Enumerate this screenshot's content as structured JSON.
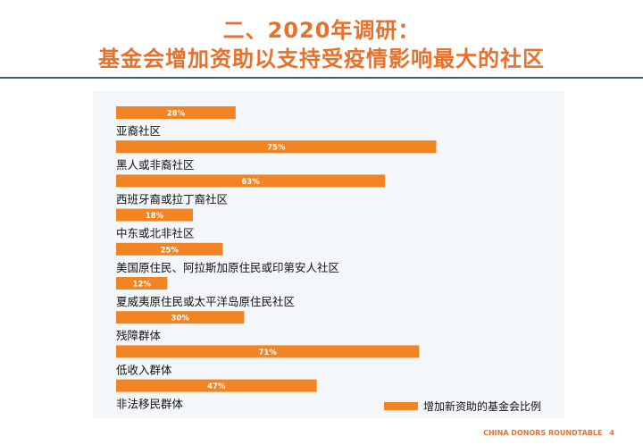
{
  "page": {
    "title_line1": "二、2020年调研：",
    "title_line2": "基金会增加资助以支持受疫情影响最大的社区",
    "footer_text": "CHINA DONORS ROUNDTABLE",
    "page_number": "4"
  },
  "colors": {
    "accent": "#e8702a",
    "bar": "#f28424",
    "rule": "#3b5d80",
    "panel": "#f4f7f9"
  },
  "chart_data": {
    "type": "bar",
    "orientation": "horizontal",
    "categories": [
      "亚裔社区",
      "黑人或非裔社区",
      "西班牙裔或拉丁裔社区",
      "中东或北非社区",
      "美国原住民、阿拉斯加原住民或印第安人社区",
      "夏威夷原住民或太平洋岛原住民社区",
      "残障群体",
      "低收入群体",
      "非法移民群体"
    ],
    "series": [
      {
        "name": "增加新资助的基金会比例",
        "values": [
          28,
          75,
          63,
          18,
          25,
          12,
          30,
          71,
          47
        ]
      }
    ],
    "value_labels": [
      "28%",
      "75%",
      "63%",
      "18%",
      "25%",
      "12%",
      "30%",
      "71%",
      "47%"
    ],
    "xlim": [
      0,
      100
    ],
    "grid": false,
    "legend": "bottom-right"
  }
}
